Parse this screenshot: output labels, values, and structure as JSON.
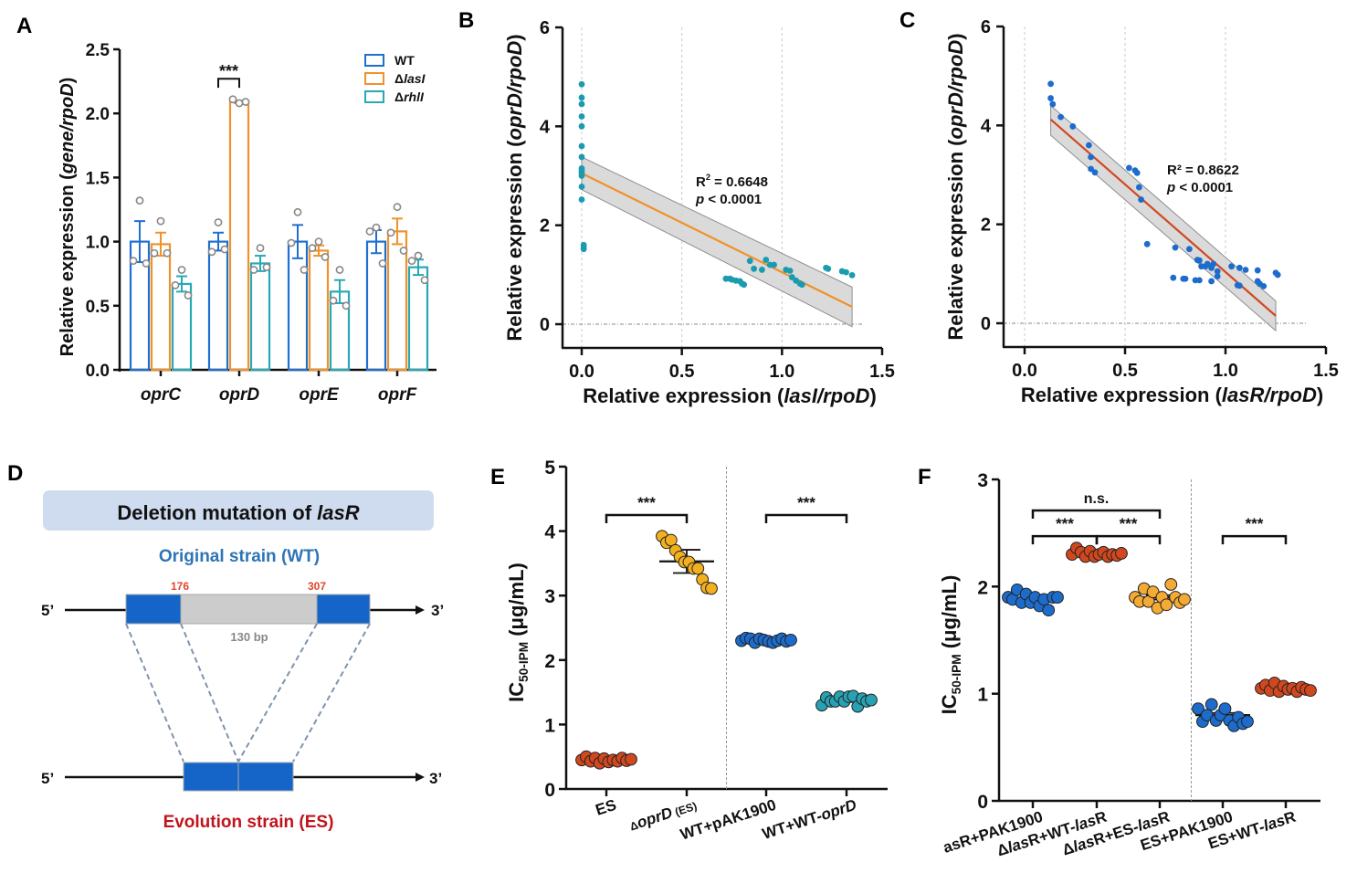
{
  "panel_labels": {
    "A": "A",
    "B": "B",
    "C": "C",
    "D": "D",
    "E": "E",
    "F": "F"
  },
  "chart_data": [
    {
      "id": "A",
      "type": "bar",
      "title": "",
      "ylabel": "Relative expression (gene/rpoD)",
      "ylabel_parts": [
        "Relative expression (",
        "gene/rpoD",
        ")"
      ],
      "xlabel": "",
      "ylim": [
        0,
        2.5
      ],
      "yticks": [
        "0.0",
        "0.5",
        "1.0",
        "1.5",
        "2.0",
        "2.5"
      ],
      "ytick_values": [
        0,
        0.5,
        1.0,
        1.5,
        2.0,
        2.5
      ],
      "categories": [
        "oprC",
        "oprD",
        "oprE",
        "oprF"
      ],
      "legend_position": "top-right",
      "series": [
        {
          "name": "WT",
          "legend_prefix": "",
          "legend_italic": "WT",
          "color": "#1f6fd0",
          "values": [
            1.0,
            1.0,
            1.0,
            1.0
          ],
          "errors": [
            0.16,
            0.07,
            0.13,
            0.09
          ],
          "points": [
            [
              1.32,
              0.85,
              0.83
            ],
            [
              1.15,
              0.92,
              0.94
            ],
            [
              1.23,
              0.99,
              0.78
            ],
            [
              1.11,
              1.08,
              0.83
            ]
          ]
        },
        {
          "name": "ΔlasI",
          "legend_prefix": "Δ",
          "legend_italic": "lasI",
          "color": "#f0922a",
          "values": [
            0.98,
            2.09,
            0.93,
            1.08
          ],
          "errors": [
            0.09,
            0.01,
            0.04,
            0.1
          ],
          "points": [
            [
              1.16,
              0.91,
              0.91
            ],
            [
              2.08,
              2.11,
              2.09
            ],
            [
              1.0,
              0.95,
              0.88
            ],
            [
              1.27,
              1.07,
              0.93
            ]
          ]
        },
        {
          "name": "ΔrhlI",
          "legend_prefix": "Δ",
          "legend_italic": "rhlI",
          "color": "#27a9b5",
          "values": [
            0.67,
            0.83,
            0.61,
            0.8
          ],
          "errors": [
            0.06,
            0.06,
            0.09,
            0.06
          ],
          "points": [
            [
              0.78,
              0.66,
              0.58
            ],
            [
              0.95,
              0.78,
              0.8
            ],
            [
              0.78,
              0.54,
              0.5
            ],
            [
              0.89,
              0.85,
              0.7
            ]
          ]
        }
      ],
      "annotations": [
        {
          "text": "***",
          "between": [
            "WT",
            "ΔlasI"
          ],
          "category": "oprD"
        }
      ]
    },
    {
      "id": "B",
      "type": "scatter",
      "ylabel": "Relative expression (oprD/rpoD)",
      "ylabel_parts": [
        "Relative expression (",
        "oprD/rpoD",
        ")"
      ],
      "xlabel": "Relative expression (lasI/rpoD)",
      "xlabel_parts": [
        "Relative expression (",
        "lasI/rpoD",
        ")"
      ],
      "xlim": [
        -0.1,
        1.5
      ],
      "ylim": [
        -0.5,
        6
      ],
      "xticks": [
        "0.0",
        "0.5",
        "1.0",
        "1.5"
      ],
      "xtick_values": [
        0,
        0.5,
        1.0,
        1.5
      ],
      "yticks": [
        "0",
        "2",
        "4",
        "6"
      ],
      "ytick_values": [
        0,
        2,
        4,
        6
      ],
      "point_color": "#1a9bb0",
      "line_color": "#f0922a",
      "fit": {
        "x0": 0.0,
        "y0": 3.05,
        "x1": 1.35,
        "y1": 0.35,
        "band_lo": [
          [
            0.0,
            2.72
          ],
          [
            1.35,
            -0.05
          ]
        ],
        "band_hi": [
          [
            0.0,
            3.38
          ],
          [
            1.35,
            0.75
          ]
        ]
      },
      "stats": {
        "r2": "R² = 0.6648",
        "r2_label": "R",
        "r2_sup": "2",
        "r2_value": " = 0.6648",
        "p_italic": "p",
        "p_value": " < 0.0001"
      },
      "points": [
        [
          0.0,
          4.85
        ],
        [
          0.0,
          4.58
        ],
        [
          0.0,
          4.45
        ],
        [
          0.0,
          4.2
        ],
        [
          0.0,
          4.0
        ],
        [
          0.0,
          3.6
        ],
        [
          0.0,
          3.38
        ],
        [
          0.0,
          3.15
        ],
        [
          0.0,
          3.1
        ],
        [
          0.0,
          3.05
        ],
        [
          0.0,
          3.0
        ],
        [
          0.0,
          2.78
        ],
        [
          0.0,
          2.52
        ],
        [
          0.01,
          1.6
        ],
        [
          0.01,
          1.55
        ],
        [
          0.01,
          1.52
        ],
        [
          0.72,
          0.92
        ],
        [
          0.74,
          0.92
        ],
        [
          0.75,
          0.9
        ],
        [
          0.77,
          0.88
        ],
        [
          0.79,
          0.87
        ],
        [
          0.8,
          0.82
        ],
        [
          0.81,
          0.8
        ],
        [
          0.84,
          1.28
        ],
        [
          0.86,
          1.12
        ],
        [
          0.9,
          1.1
        ],
        [
          0.92,
          1.3
        ],
        [
          0.94,
          1.2
        ],
        [
          0.96,
          1.2
        ],
        [
          1.02,
          1.1
        ],
        [
          1.04,
          1.08
        ],
        [
          1.05,
          0.95
        ],
        [
          1.07,
          0.88
        ],
        [
          1.09,
          0.82
        ],
        [
          1.1,
          0.8
        ],
        [
          1.22,
          1.14
        ],
        [
          1.23,
          1.12
        ],
        [
          1.3,
          1.07
        ],
        [
          1.32,
          1.05
        ],
        [
          1.35,
          0.99
        ]
      ]
    },
    {
      "id": "C",
      "type": "scatter",
      "ylabel": "Relative expression (oprD/rpoD)",
      "ylabel_parts": [
        "Relative expression (",
        "oprD/rpoD",
        ")"
      ],
      "xlabel": "Relative expression (lasR/rpoD)",
      "xlabel_parts": [
        "Relative expression (",
        "lasR/rpoD",
        ")"
      ],
      "xlim": [
        -0.1,
        1.5
      ],
      "ylim": [
        -0.5,
        6
      ],
      "xticks": [
        "0.0",
        "0.5",
        "1.0",
        "1.5"
      ],
      "xtick_values": [
        0,
        0.5,
        1.0,
        1.5
      ],
      "yticks": [
        "0",
        "2",
        "4",
        "6"
      ],
      "ytick_values": [
        0,
        2,
        4,
        6
      ],
      "point_color": "#1d6ccc",
      "line_color": "#d1481f",
      "fit": {
        "x0": 0.13,
        "y0": 4.12,
        "x1": 1.25,
        "y1": 0.15,
        "band_lo": [
          [
            0.13,
            3.8
          ],
          [
            1.25,
            -0.15
          ]
        ],
        "band_hi": [
          [
            0.13,
            4.4
          ],
          [
            1.25,
            0.45
          ]
        ]
      },
      "stats": {
        "r2": "R² = 0.8622",
        "r2_label": "R²",
        "r2_sup": "",
        "r2_value": " = 0.8622",
        "p_italic": "p",
        "p_value": " < 0.0001"
      },
      "points": [
        [
          0.13,
          4.84
        ],
        [
          0.13,
          4.55
        ],
        [
          0.14,
          4.43
        ],
        [
          0.18,
          4.17
        ],
        [
          0.24,
          3.98
        ],
        [
          0.32,
          3.6
        ],
        [
          0.33,
          3.36
        ],
        [
          0.33,
          3.12
        ],
        [
          0.35,
          3.05
        ],
        [
          0.52,
          3.14
        ],
        [
          0.55,
          3.09
        ],
        [
          0.56,
          3.04
        ],
        [
          0.57,
          2.75
        ],
        [
          0.58,
          2.5
        ],
        [
          0.61,
          1.6
        ],
        [
          0.75,
          1.53
        ],
        [
          0.82,
          1.5
        ],
        [
          0.86,
          1.28
        ],
        [
          0.87,
          1.27
        ],
        [
          0.88,
          1.15
        ],
        [
          0.9,
          1.15
        ],
        [
          0.91,
          1.2
        ],
        [
          0.93,
          1.12
        ],
        [
          0.94,
          1.2
        ],
        [
          0.96,
          1.05
        ],
        [
          0.96,
          0.95
        ],
        [
          1.03,
          1.15
        ],
        [
          1.07,
          1.12
        ],
        [
          1.1,
          1.08
        ],
        [
          1.16,
          1.07
        ],
        [
          1.25,
          1.02
        ],
        [
          1.26,
          0.98
        ],
        [
          0.74,
          0.92
        ],
        [
          0.79,
          0.9
        ],
        [
          0.8,
          0.9
        ],
        [
          0.85,
          0.87
        ],
        [
          0.87,
          0.87
        ],
        [
          0.93,
          0.85
        ],
        [
          1.06,
          0.77
        ],
        [
          1.07,
          0.76
        ],
        [
          1.16,
          0.85
        ],
        [
          1.17,
          0.8
        ],
        [
          1.19,
          0.75
        ]
      ]
    },
    {
      "id": "E",
      "type": "scatter",
      "ylabel": "IC50-IPM (μg/mL)",
      "ylabel_main": "IC",
      "ylabel_sub": "50-IPM",
      "ylabel_unit": " (μg/mL)",
      "ylim": [
        0,
        5
      ],
      "yticks": [
        "0",
        "1",
        "2",
        "3",
        "4",
        "5"
      ],
      "ytick_values": [
        0,
        1,
        2,
        3,
        4,
        5
      ],
      "categories": [
        "ES",
        "ΔoprD (ES)",
        "WT+pAK1900",
        "WT+WT-oprD"
      ],
      "category_parts": [
        [
          {
            "t": "ES",
            "i": false
          }
        ],
        [
          {
            "t": "Δ",
            "i": false,
            "s": "small"
          },
          {
            "t": "oprD",
            "i": true
          },
          {
            "t": " (ES)",
            "i": false,
            "s": "small"
          }
        ],
        [
          {
            "t": "WT+pAK1900",
            "i": false
          }
        ],
        [
          {
            "t": "WT+WT-",
            "i": false
          },
          {
            "t": "oprD",
            "i": true
          }
        ]
      ],
      "divider_after": 2,
      "groups": [
        {
          "color": "#d1481f",
          "mean": 0.45,
          "sem": 0.02,
          "points": [
            0.45,
            0.5,
            0.43,
            0.48,
            0.4,
            0.47,
            0.42,
            0.45,
            0.43,
            0.48,
            0.44,
            0.46
          ]
        },
        {
          "color": "#f2b01e",
          "mean": 3.53,
          "sem": 0.18,
          "points": [
            3.92,
            3.82,
            3.86,
            3.7,
            3.6,
            3.52,
            3.52,
            3.42,
            3.42,
            3.25,
            3.12,
            3.11
          ]
        },
        {
          "color": "#1d6ccc",
          "mean": 2.31,
          "sem": 0.01,
          "points": [
            2.3,
            2.34,
            2.33,
            2.27,
            2.33,
            2.31,
            2.29,
            2.27,
            2.3,
            2.33,
            2.29,
            2.31
          ]
        },
        {
          "color": "#27a1b3",
          "mean": 1.37,
          "sem": 0.02,
          "points": [
            1.3,
            1.42,
            1.36,
            1.36,
            1.43,
            1.36,
            1.43,
            1.44,
            1.28,
            1.4,
            1.36,
            1.38
          ]
        }
      ],
      "annotations": [
        {
          "text": "***",
          "from": 0,
          "to": 1,
          "level": 4.25
        },
        {
          "text": "***",
          "from": 2,
          "to": 3,
          "level": 4.25
        }
      ]
    },
    {
      "id": "F",
      "type": "scatter",
      "ylabel": "IC50-IPM (μg/mL)",
      "ylabel_main": "IC",
      "ylabel_sub": "50-IPM",
      "ylabel_unit": " (μg/mL)",
      "ylim": [
        0,
        3
      ],
      "yticks": [
        "0",
        "1",
        "2",
        "3"
      ],
      "ytick_values": [
        0,
        1,
        2,
        3
      ],
      "categories": [
        "asR+PAK1900",
        "ΔlasR+WT-lasR",
        "ΔlasR+ES-lasR",
        "ES+PAK1900",
        "ES+WT-lasR"
      ],
      "category_parts": [
        [
          {
            "t": "asR+PAK1900",
            "i": false
          }
        ],
        [
          {
            "t": "Δ",
            "i": false
          },
          {
            "t": "las",
            "i": true
          },
          {
            "t": "R+WT-",
            "i": false
          },
          {
            "t": "las",
            "i": true
          },
          {
            "t": "R",
            "i": false
          }
        ],
        [
          {
            "t": "Δ",
            "i": false
          },
          {
            "t": "las",
            "i": true
          },
          {
            "t": "R+ES-",
            "i": false
          },
          {
            "t": "las",
            "i": true
          },
          {
            "t": "R",
            "i": false
          }
        ],
        [
          {
            "t": "ES+PAK1900",
            "i": false
          }
        ],
        [
          {
            "t": "ES+WT-",
            "i": false
          },
          {
            "t": "las",
            "i": true
          },
          {
            "t": "R",
            "i": false
          }
        ]
      ],
      "divider_after": 3,
      "groups": [
        {
          "color": "#1d6ccc",
          "mean": 1.88,
          "sem": 0.02,
          "points": [
            1.9,
            1.88,
            1.97,
            1.85,
            1.93,
            1.85,
            1.9,
            1.82,
            1.88,
            1.78,
            1.9,
            1.9
          ]
        },
        {
          "color": "#d1481f",
          "mean": 2.3,
          "sem": 0.01,
          "points": [
            2.3,
            2.36,
            2.32,
            2.28,
            2.33,
            2.28,
            2.3,
            2.32,
            2.28,
            2.3,
            2.29,
            2.31
          ]
        },
        {
          "color": "#f5ab33",
          "mean": 1.9,
          "sem": 0.02,
          "points": [
            1.9,
            1.86,
            1.98,
            1.86,
            1.95,
            1.8,
            1.9,
            1.83,
            2.02,
            1.9,
            1.85,
            1.88
          ]
        },
        {
          "color": "#1d6ccc",
          "mean": 0.8,
          "sem": 0.02,
          "points": [
            0.86,
            0.74,
            0.8,
            0.9,
            0.75,
            0.8,
            0.86,
            0.75,
            0.7,
            0.78,
            0.72,
            0.74
          ]
        },
        {
          "color": "#d1481f",
          "mean": 1.05,
          "sem": 0.01,
          "points": [
            1.05,
            1.08,
            1.03,
            1.1,
            1.02,
            1.07,
            1.04,
            1.05,
            1.02,
            1.06,
            1.04,
            1.03
          ]
        }
      ],
      "annotations": [
        {
          "text": "n.s.",
          "from": 0,
          "to": 2,
          "level": 2.71
        },
        {
          "text": "***",
          "from": 0,
          "to": 1,
          "level": 2.47
        },
        {
          "text": "***",
          "from": 1,
          "to": 2,
          "level": 2.47
        },
        {
          "text": "***",
          "from": 3,
          "to": 4,
          "level": 2.47
        }
      ]
    }
  ],
  "diagram": {
    "title_text": "Deletion mutation of ",
    "title_italic": "lasR",
    "original_label": "Original strain (WT)",
    "evolution_label": "Evolution strain (ES)",
    "pos_left": "176",
    "pos_right": "307",
    "deletion_length": "130 bp",
    "five_prime": "5’",
    "three_prime": "3’",
    "colors": {
      "exon": "#1565c8",
      "deleted": "#cccccc",
      "title_bg": "#cfdcef",
      "original": "#2e75b6",
      "evolution": "#c0141c",
      "position": "#e0452a",
      "connector": "#7f93ae"
    }
  }
}
